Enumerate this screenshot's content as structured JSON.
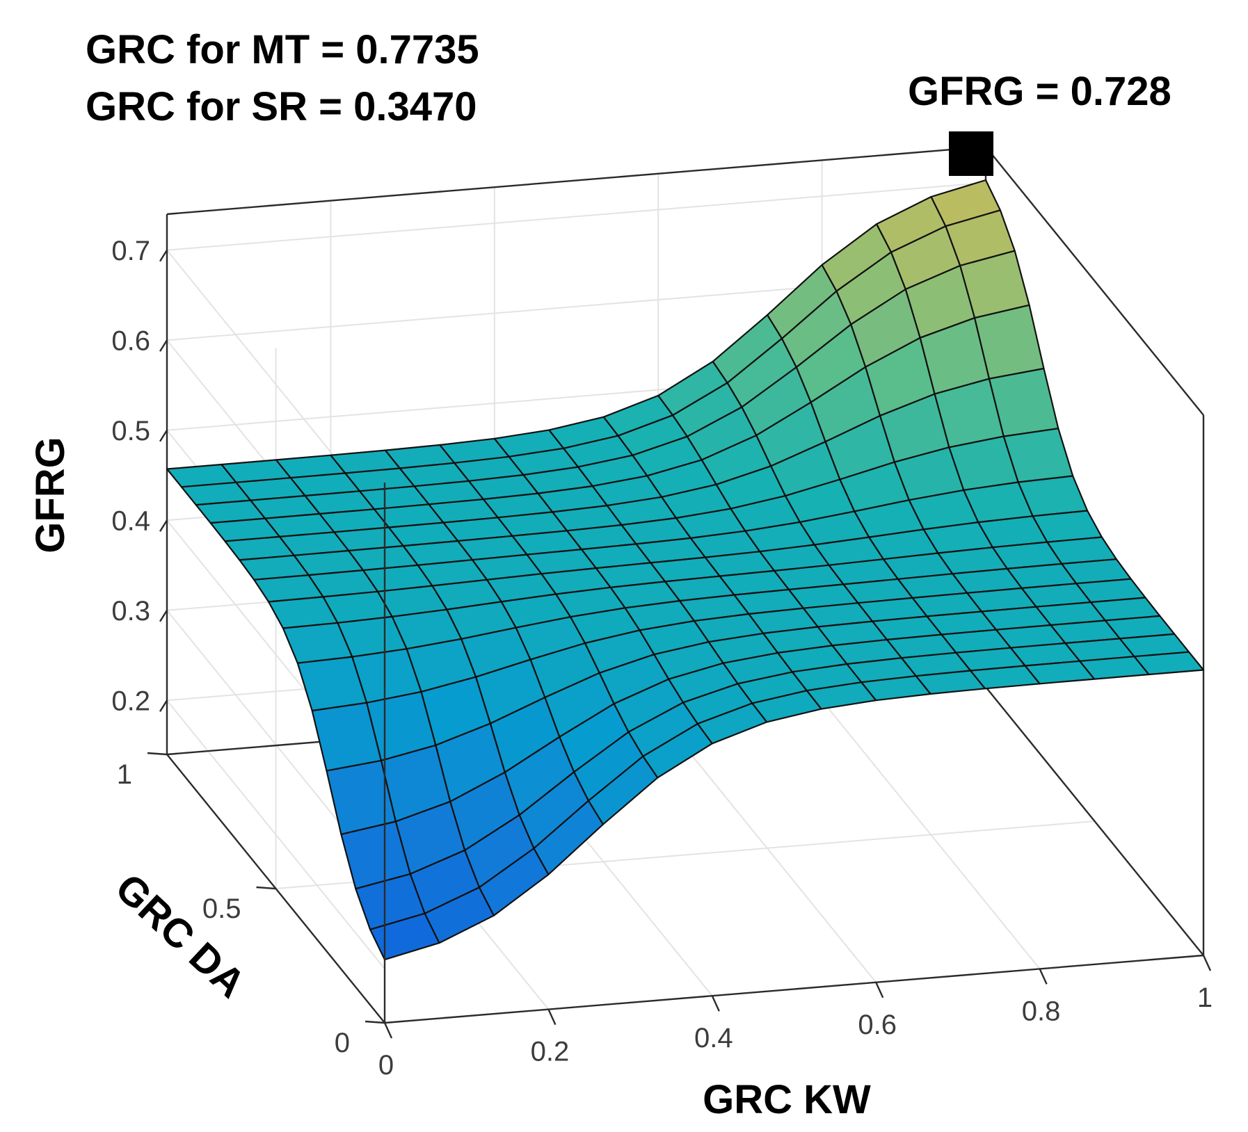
{
  "chart_data": {
    "type": "surface",
    "annotations": {
      "grc_mt": "GRC for MT = 0.7735",
      "grc_sr": "GRC for SR = 0.3470",
      "peak_label": "GFRG = 0.728"
    },
    "peak": {
      "x": 1.0,
      "y": 1.0,
      "z": 0.728
    },
    "x_axis": {
      "label": "GRC KW",
      "range": [
        0,
        1
      ],
      "ticks": [
        0,
        0.2,
        0.4,
        0.6,
        0.8,
        1
      ],
      "tick_labels": [
        "0",
        "0.2",
        "0.4",
        "0.6",
        "0.8",
        "1"
      ]
    },
    "y_axis": {
      "label": "GRC DA",
      "range": [
        0,
        1
      ],
      "ticks": [
        0,
        0.5,
        1
      ],
      "tick_labels": [
        "0",
        "0.5",
        "1"
      ]
    },
    "z_axis": {
      "label": "GFRG",
      "range": [
        0.14,
        0.74
      ],
      "ticks": [
        0.2,
        0.3,
        0.4,
        0.5,
        0.6,
        0.7
      ],
      "tick_labels": [
        "0.2",
        "0.3",
        "0.4",
        "0.5",
        "0.6",
        "0.7"
      ]
    },
    "grid": true,
    "colormap": "parula",
    "surface": {
      "x": [
        0,
        0.0667,
        0.1333,
        0.2,
        0.2667,
        0.3333,
        0.4,
        0.4667,
        0.5333,
        0.6,
        0.6667,
        0.7333,
        0.8,
        0.8667,
        0.9333,
        1.0
      ],
      "y": [
        0,
        0.0667,
        0.1333,
        0.2,
        0.2667,
        0.3333,
        0.4,
        0.4667,
        0.5333,
        0.6,
        0.6667,
        0.7333,
        0.8,
        0.8667,
        0.9333,
        1.0
      ],
      "base": 0.457,
      "low_amplitude": 0.272,
      "high_amplitude": 0.271,
      "x_edges": [
        0.25,
        0.75
      ],
      "y_edges": [
        0.25,
        0.75
      ],
      "sharpness": 12
    }
  }
}
